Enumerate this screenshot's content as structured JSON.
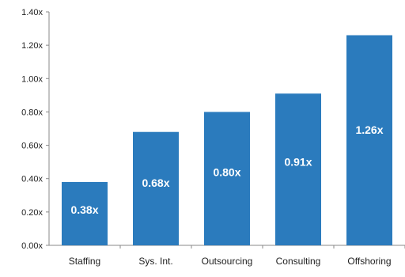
{
  "chart_data": {
    "type": "bar",
    "categories": [
      "Staffing",
      "Sys. Int.",
      "Outsourcing",
      "Consulting",
      "Offshoring"
    ],
    "values": [
      0.38,
      0.68,
      0.8,
      0.91,
      1.26
    ],
    "data_labels": [
      "0.38x",
      "0.68x",
      "0.80x",
      "0.91x",
      "1.26x"
    ],
    "y_ticks": [
      0.0,
      0.2,
      0.4,
      0.6,
      0.8,
      1.0,
      1.2,
      1.4
    ],
    "y_tick_labels": [
      "0.00x",
      "0.20x",
      "0.40x",
      "0.60x",
      "0.80x",
      "1.00x",
      "1.20x",
      "1.40x"
    ],
    "ylim": [
      0,
      1.4
    ],
    "title": "",
    "xlabel": "",
    "ylabel": "",
    "grid": false,
    "bar_color": "#2b7bbd",
    "label_color": "#ffffff",
    "axis_color": "#888888"
  }
}
